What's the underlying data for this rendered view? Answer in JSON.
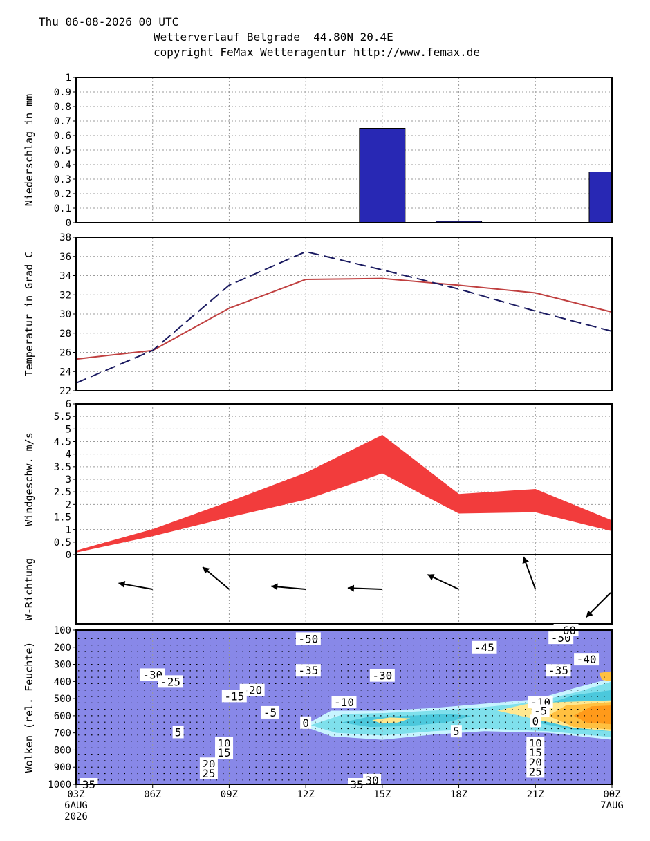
{
  "header": {
    "line1": "Thu 06-08-2026 00 UTC",
    "line2": "Wetterverlauf Belgrade  44.80N 20.4E",
    "line3": "copyright FeMax Wetteragentur http://www.femax.de"
  },
  "x_axis": {
    "ticks": [
      "03Z",
      "06Z",
      "09Z",
      "12Z",
      "15Z",
      "18Z",
      "21Z",
      "00Z"
    ],
    "start_date": [
      "6AUG",
      "2026"
    ],
    "end_date": [
      "7AUG"
    ]
  },
  "chart_data": [
    {
      "type": "bar",
      "ylabel": "Niederschlag in mm",
      "ylim": [
        0,
        1
      ],
      "yticks": [
        "0",
        "0.1",
        "0.2",
        "0.3",
        "0.4",
        "0.5",
        "0.6",
        "0.7",
        "0.8",
        "0.9",
        "1"
      ],
      "categories": [
        "03Z",
        "06Z",
        "09Z",
        "12Z",
        "15Z",
        "18Z",
        "21Z",
        "00Z"
      ],
      "values": [
        0,
        0,
        0,
        0,
        0.65,
        0.01,
        0,
        0.35
      ],
      "color": "#2828b4",
      "grid": true
    },
    {
      "type": "line",
      "ylabel": "Temperatur in Grad C",
      "ylim": [
        22,
        38
      ],
      "yticks": [
        "22",
        "24",
        "26",
        "28",
        "30",
        "32",
        "34",
        "36",
        "38"
      ],
      "x": [
        "03Z",
        "06Z",
        "09Z",
        "12Z",
        "15Z",
        "18Z",
        "21Z",
        "00Z"
      ],
      "series": [
        {
          "values": [
            25.3,
            26.2,
            30.6,
            33.6,
            33.7,
            33.0,
            32.2,
            30.2
          ],
          "color": "#c04040",
          "style": "solid"
        },
        {
          "values": [
            22.8,
            26.2,
            33.0,
            36.5,
            34.6,
            32.6,
            30.3,
            28.2
          ],
          "color": "#1a1a60",
          "style": "dashed"
        }
      ],
      "grid": true
    },
    {
      "type": "area",
      "ylabel": "Windgeschw. m/s",
      "ylim": [
        0,
        6
      ],
      "yticks": [
        "0",
        "0.5",
        "1",
        "1.5",
        "2",
        "2.5",
        "3",
        "3.5",
        "4",
        "4.5",
        "5",
        "5.5",
        "6"
      ],
      "x": [
        "03Z",
        "06Z",
        "09Z",
        "12Z",
        "15Z",
        "18Z",
        "21Z",
        "00Z"
      ],
      "lower": [
        0.1,
        0.75,
        1.5,
        2.2,
        3.25,
        1.65,
        1.7,
        0.95
      ],
      "upper": [
        0.15,
        1.0,
        2.1,
        3.25,
        4.75,
        2.4,
        2.6,
        1.35
      ],
      "color": "#f23c3c",
      "grid": true
    },
    {
      "type": "vector",
      "ylabel": "W-Richtung",
      "x": [
        "03Z",
        "06Z",
        "09Z",
        "12Z",
        "15Z",
        "18Z",
        "21Z",
        "00Z"
      ],
      "directions_deg": [
        100,
        100,
        130,
        95,
        92,
        115,
        160,
        45
      ],
      "grid": true
    },
    {
      "type": "heatmap",
      "ylabel": "Wolken (rel. Feuchte)",
      "ylim": [
        1000,
        100
      ],
      "yticks": [
        "100",
        "200",
        "300",
        "400",
        "500",
        "600",
        "700",
        "800",
        "900",
        "1000"
      ],
      "background_color": "#8888e8",
      "cloud_colors": [
        "#c8f4ff",
        "#7fe0ec",
        "#4cc8dc",
        "#ffe890",
        "#ffc040",
        "#ff9a1a"
      ],
      "contour_labels": [
        {
          "text": "-50",
          "x": 12.1,
          "p": 150
        },
        {
          "text": "-45",
          "x": 19.0,
          "p": 200
        },
        {
          "text": "-50",
          "x": 22.0,
          "p": 145
        },
        {
          "text": "-60",
          "x": 22.2,
          "p": 100
        },
        {
          "text": "-40",
          "x": 23.0,
          "p": 270
        },
        {
          "text": "-35",
          "x": 21.9,
          "p": 335
        },
        {
          "text": "-35",
          "x": 12.1,
          "p": 335
        },
        {
          "text": "-30",
          "x": 15.0,
          "p": 365
        },
        {
          "text": "-30",
          "x": 6.0,
          "p": 360
        },
        {
          "text": "-25",
          "x": 6.7,
          "p": 400
        },
        {
          "text": "-20",
          "x": 9.9,
          "p": 450
        },
        {
          "text": "-15",
          "x": 9.2,
          "p": 485
        },
        {
          "text": "-10",
          "x": 13.5,
          "p": 520
        },
        {
          "text": "-10",
          "x": 21.2,
          "p": 520
        },
        {
          "text": "-5",
          "x": 10.6,
          "p": 580
        },
        {
          "text": "-5",
          "x": 21.2,
          "p": 570
        },
        {
          "text": "0",
          "x": 12.0,
          "p": 640
        },
        {
          "text": "0",
          "x": 21.0,
          "p": 630
        },
        {
          "text": "5",
          "x": 7.0,
          "p": 695
        },
        {
          "text": "5",
          "x": 17.9,
          "p": 690
        },
        {
          "text": "10",
          "x": 8.8,
          "p": 760
        },
        {
          "text": "15",
          "x": 8.8,
          "p": 815
        },
        {
          "text": "20",
          "x": 8.2,
          "p": 880
        },
        {
          "text": "25",
          "x": 8.2,
          "p": 935
        },
        {
          "text": "30",
          "x": 14.6,
          "p": 975
        },
        {
          "text": "35",
          "x": 3.5,
          "p": 1000
        },
        {
          "text": "35",
          "x": 14.0,
          "p": 1000
        },
        {
          "text": "10",
          "x": 21.0,
          "p": 760
        },
        {
          "text": "15",
          "x": 21.0,
          "p": 815
        },
        {
          "text": "20",
          "x": 21.0,
          "p": 870
        },
        {
          "text": "25",
          "x": 21.0,
          "p": 925
        }
      ],
      "cloud_bands": [
        {
          "level": 0,
          "points": [
            [
              11.9,
              660
            ],
            [
              13,
              570
            ],
            [
              15,
              570
            ],
            [
              17,
              555
            ],
            [
              19,
              530
            ],
            [
              21,
              505
            ],
            [
              22.5,
              440
            ],
            [
              24,
              380
            ],
            [
              24,
              740
            ],
            [
              21.5,
              700
            ],
            [
              19,
              690
            ],
            [
              17,
              710
            ],
            [
              15,
              740
            ],
            [
              13,
              720
            ]
          ]
        },
        {
          "level": 1,
          "points": [
            [
              12.2,
              655
            ],
            [
              13.5,
              590
            ],
            [
              15,
              585
            ],
            [
              17,
              570
            ],
            [
              19,
              550
            ],
            [
              21,
              520
            ],
            [
              22.8,
              455
            ],
            [
              24,
              400
            ],
            [
              24,
              725
            ],
            [
              21.5,
              690
            ],
            [
              19,
              675
            ],
            [
              17,
              690
            ],
            [
              15,
              715
            ],
            [
              13.2,
              700
            ]
          ]
        },
        {
          "level": 2,
          "points": [
            [
              13.4,
              640
            ],
            [
              14.5,
              605
            ],
            [
              16,
              600
            ],
            [
              17.5,
              590
            ],
            [
              18.5,
              600
            ],
            [
              17.5,
              640
            ],
            [
              16,
              660
            ],
            [
              14.5,
              665
            ]
          ]
        },
        {
          "level": 2,
          "points": [
            [
              20.5,
              560
            ],
            [
              21.5,
              530
            ],
            [
              22.5,
              480
            ],
            [
              24,
              450
            ],
            [
              24,
              690
            ],
            [
              22.5,
              680
            ],
            [
              21,
              640
            ]
          ]
        },
        {
          "level": 3,
          "points": [
            [
              14.6,
              625
            ],
            [
              15.3,
              610
            ],
            [
              16.1,
              615
            ],
            [
              15.6,
              640
            ],
            [
              14.9,
              642
            ]
          ]
        },
        {
          "level": 3,
          "points": [
            [
              19.5,
              570
            ],
            [
              20.7,
              530
            ],
            [
              22,
              520
            ],
            [
              24,
              510
            ],
            [
              24,
              690
            ],
            [
              22.5,
              670
            ],
            [
              21,
              620
            ]
          ]
        },
        {
          "level": 4,
          "points": [
            [
              21.5,
              600
            ],
            [
              22.2,
              540
            ],
            [
              24,
              520
            ],
            [
              24,
              680
            ],
            [
              22.5,
              665
            ]
          ]
        },
        {
          "level": 5,
          "points": [
            [
              22.5,
              600
            ],
            [
              23.2,
              545
            ],
            [
              24,
              540
            ],
            [
              24,
              650
            ],
            [
              23,
              640
            ]
          ]
        },
        {
          "level": 4,
          "points": [
            [
              23.5,
              350
            ],
            [
              24,
              340
            ],
            [
              24,
              400
            ],
            [
              23.6,
              390
            ]
          ]
        }
      ]
    }
  ]
}
